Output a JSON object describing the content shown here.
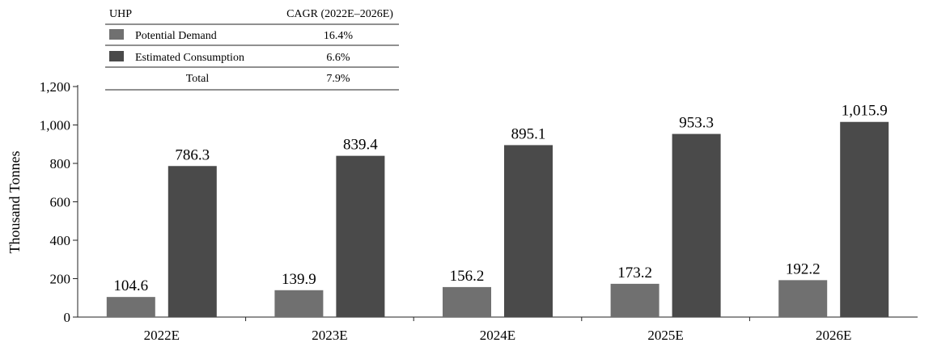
{
  "chart_data": {
    "type": "bar",
    "categories": [
      "2022E",
      "2023E",
      "2024E",
      "2025E",
      "2026E"
    ],
    "series": [
      {
        "name": "Potential Demand",
        "values": [
          104.6,
          139.9,
          156.2,
          173.2,
          192.2
        ],
        "labels": [
          "104.6",
          "139.9",
          "156.2",
          "173.2",
          "192.2"
        ],
        "color": "#707070"
      },
      {
        "name": "Estimated Consumption",
        "values": [
          786.3,
          839.4,
          895.1,
          953.3,
          1015.9
        ],
        "labels": [
          "786.3",
          "839.4",
          "895.1",
          "953.3",
          "1,015.9"
        ],
        "color": "#4a4a4a"
      }
    ],
    "ylabel": "Thousand Tonnes",
    "xlabel": "",
    "ylim": [
      0,
      1200
    ],
    "yticks": [
      0,
      200,
      400,
      600,
      800,
      1000,
      1200
    ],
    "ytick_labels": [
      "0",
      "200",
      "400",
      "600",
      "800",
      "1,000",
      "1,200"
    ],
    "grid": false
  },
  "legend_table": {
    "header_left": "UHP",
    "header_right": "CAGR (2022E–2026E)",
    "rows": [
      {
        "label": "Potential Demand",
        "value": "16.4%",
        "color": "#707070"
      },
      {
        "label": "Estimated Consumption",
        "value": "6.6%",
        "color": "#4a4a4a"
      },
      {
        "label": "Total",
        "value": "7.9%",
        "color": null
      }
    ]
  }
}
